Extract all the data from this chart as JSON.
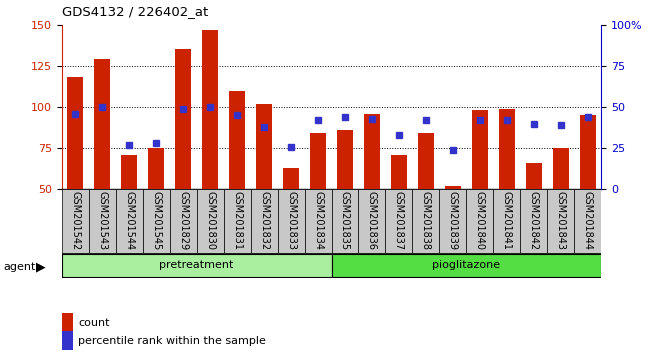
{
  "title": "GDS4132 / 226402_at",
  "categories": [
    "GSM201542",
    "GSM201543",
    "GSM201544",
    "GSM201545",
    "GSM201829",
    "GSM201830",
    "GSM201831",
    "GSM201832",
    "GSM201833",
    "GSM201834",
    "GSM201835",
    "GSM201836",
    "GSM201837",
    "GSM201838",
    "GSM201839",
    "GSM201840",
    "GSM201841",
    "GSM201842",
    "GSM201843",
    "GSM201844"
  ],
  "count_values": [
    118,
    129,
    71,
    75,
    135,
    147,
    110,
    102,
    63,
    84,
    86,
    96,
    71,
    84,
    52,
    98,
    99,
    66,
    75,
    95
  ],
  "percentile_values": [
    46,
    50,
    27,
    28,
    49,
    50,
    45,
    38,
    26,
    42,
    44,
    43,
    33,
    42,
    24,
    42,
    42,
    40,
    39,
    44
  ],
  "pretreatment_count": 10,
  "left_ylim": [
    50,
    150
  ],
  "right_ylim": [
    0,
    100
  ],
  "left_yticks": [
    50,
    75,
    100,
    125,
    150
  ],
  "right_yticks": [
    0,
    25,
    50,
    75,
    100
  ],
  "right_yticklabels": [
    "0",
    "25",
    "50",
    "75",
    "100%"
  ],
  "bar_color": "#cc2200",
  "dot_color": "#3333cc",
  "pretreatment_color": "#aaeea0",
  "pioglitazone_color": "#55dd44",
  "grid_color": "#000000",
  "bar_width": 0.6,
  "dot_size": 5,
  "tick_label_bg": "#cccccc",
  "tick_label_fontsize": 7
}
